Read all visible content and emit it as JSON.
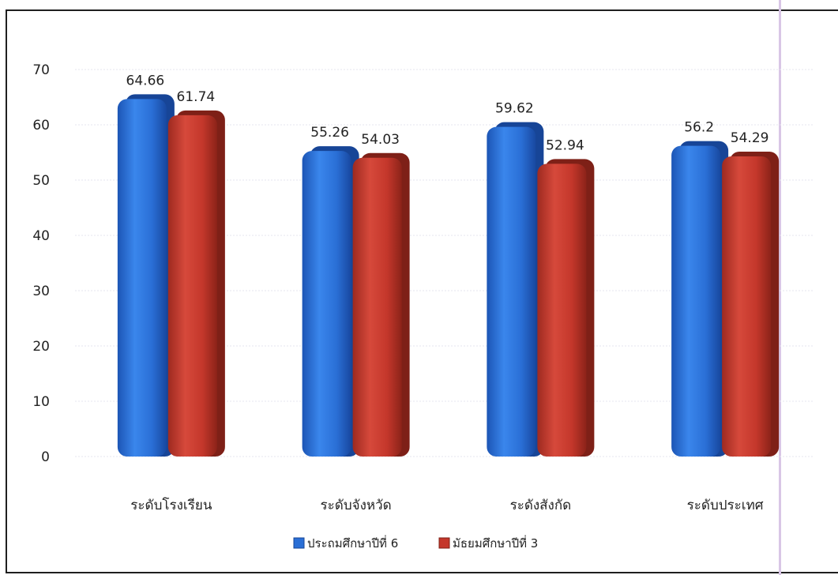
{
  "chart_data": {
    "type": "bar",
    "categories": [
      "ระดับโรงเรียน",
      "ระดับจังหวัด",
      "ระดังสังกัด",
      "ระดับประเทศ"
    ],
    "series": [
      {
        "name": "ประถมศึกษาปีที่ 6",
        "values": [
          64.66,
          55.26,
          59.62,
          56.2
        ],
        "labels": [
          "64.66",
          "55.26",
          "59.62",
          "56.2"
        ],
        "color": "#2a6fd6"
      },
      {
        "name": "มัธยมศึกษาปีที่ 3",
        "values": [
          61.74,
          54.03,
          52.94,
          54.29
        ],
        "labels": [
          "61.74",
          "54.03",
          "52.94",
          "54.29"
        ],
        "color": "#c4372b"
      }
    ],
    "yticks": [
      "0",
      "10",
      "20",
      "30",
      "40",
      "50",
      "60",
      "70"
    ],
    "ylim": [
      0,
      70
    ],
    "grid": true,
    "legend_position": "bottom"
  }
}
